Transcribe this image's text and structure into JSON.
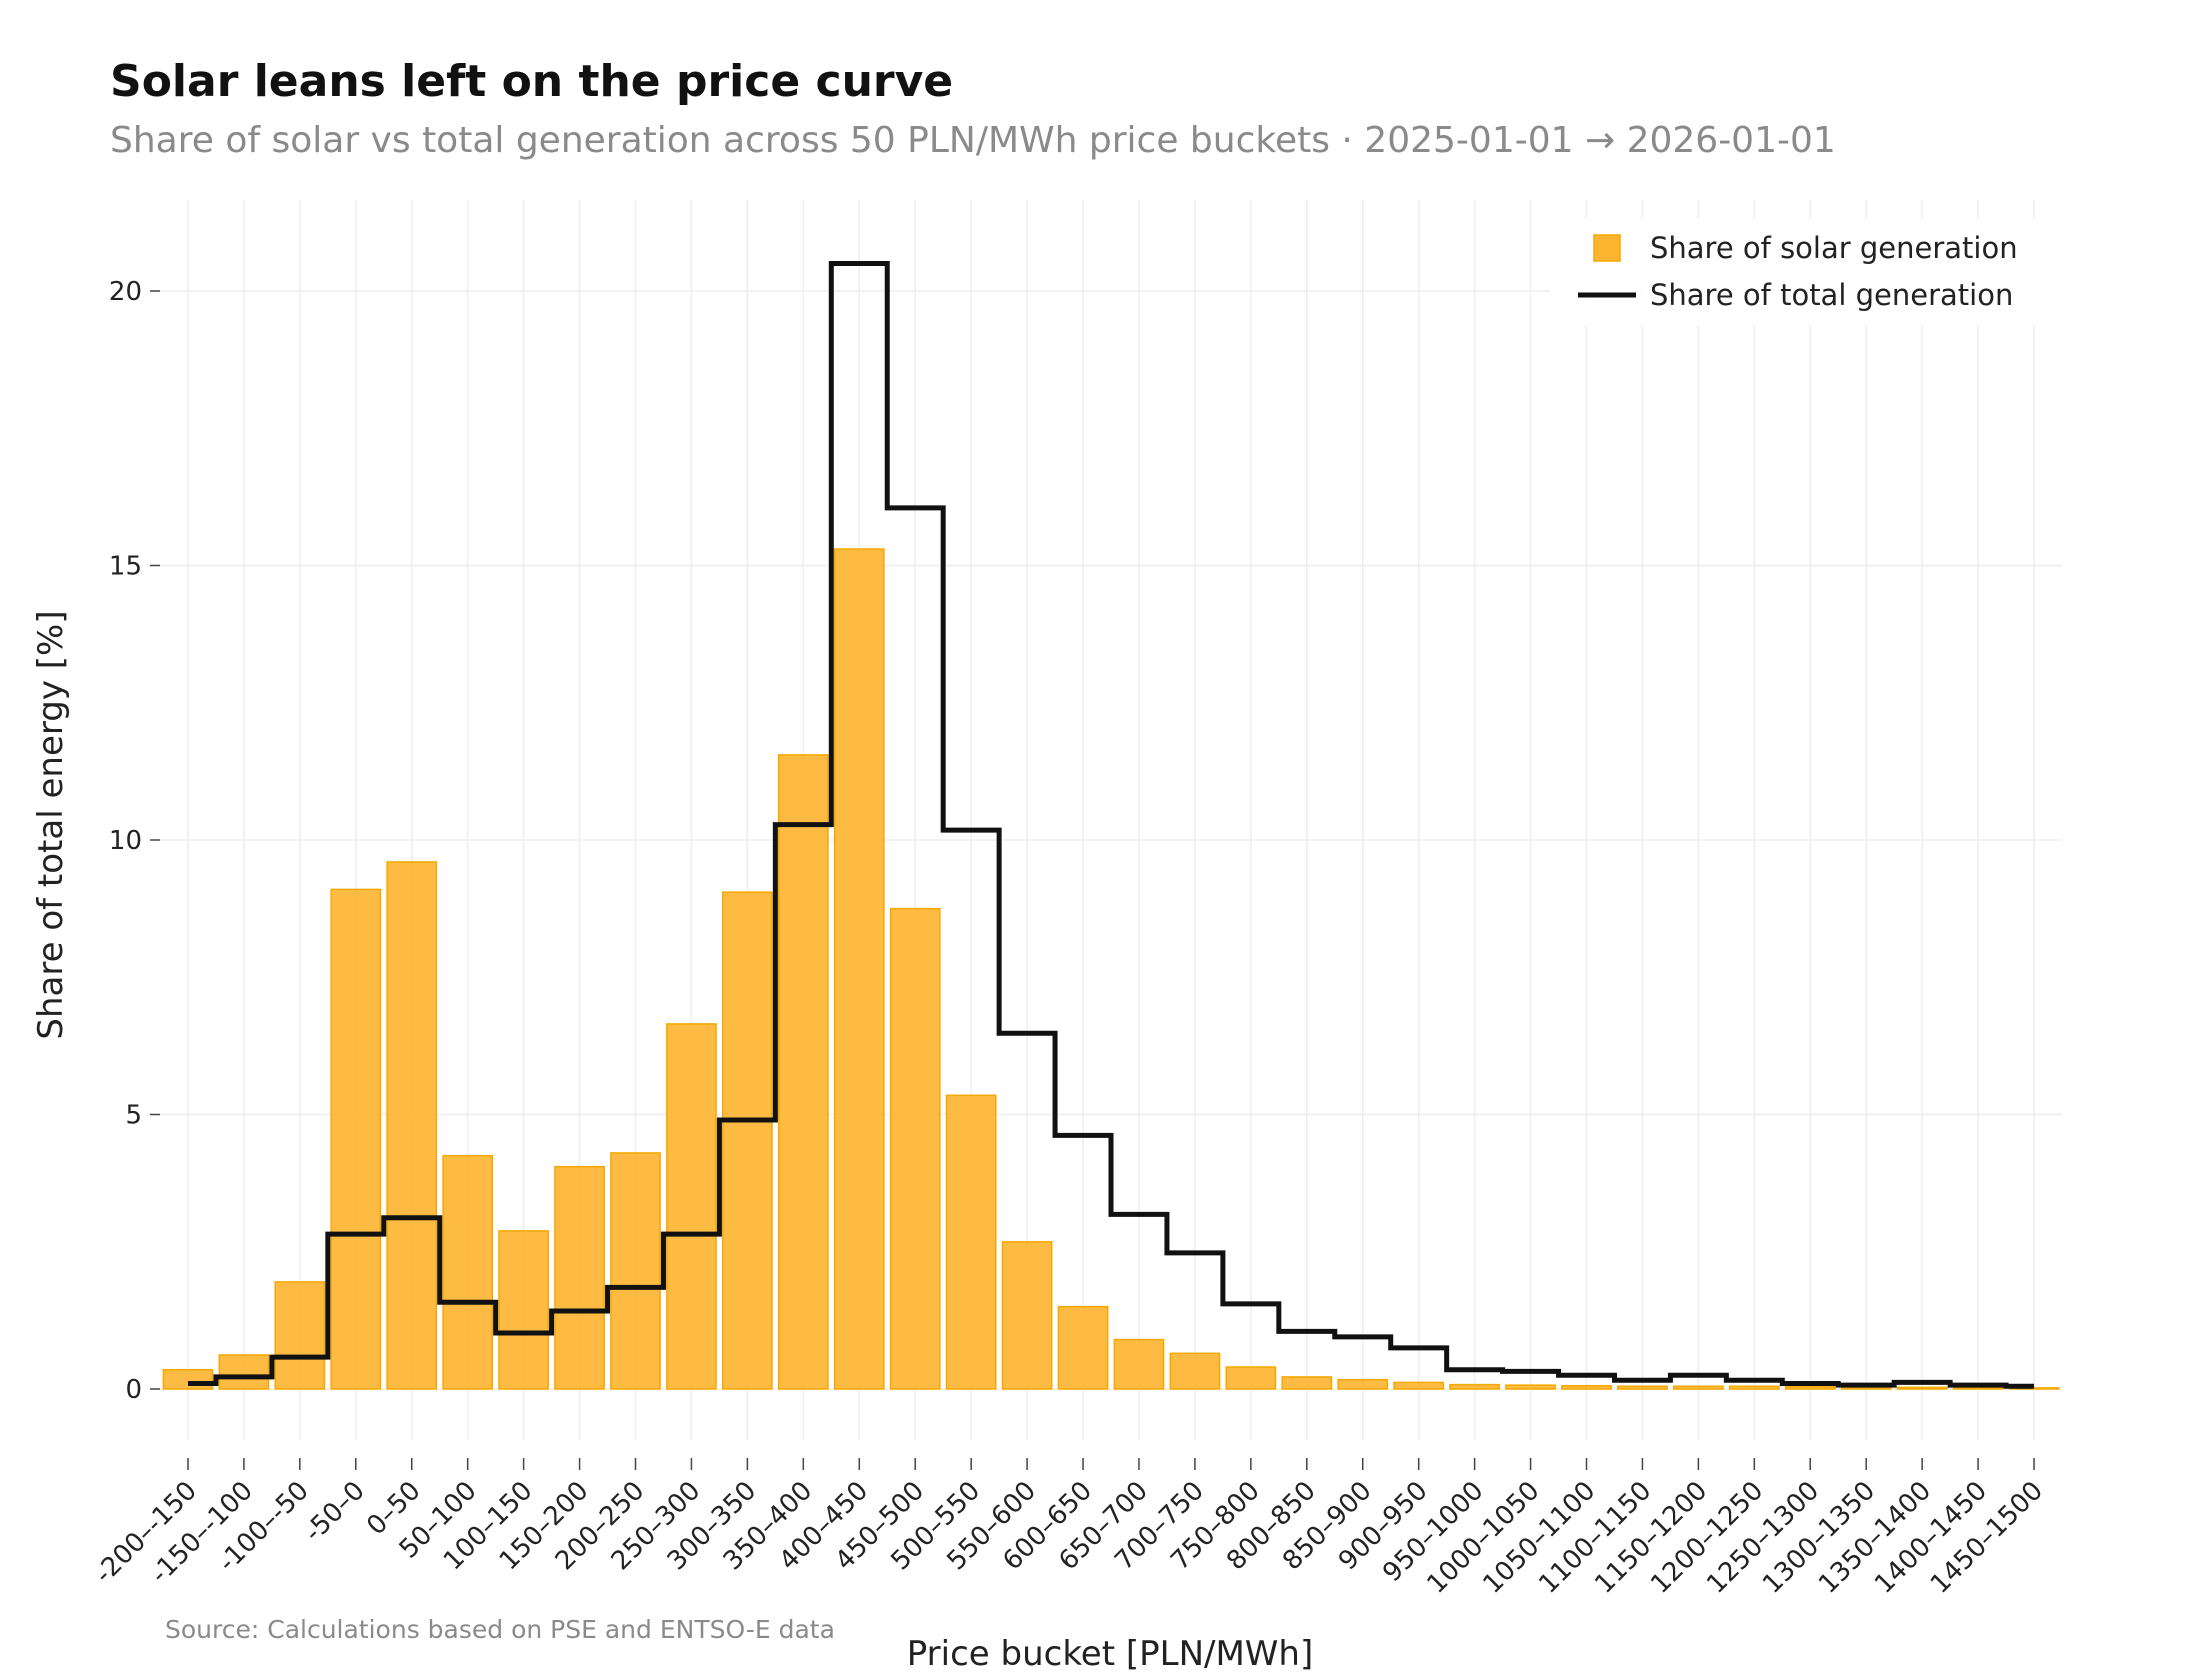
{
  "chart_data": {
    "type": "bar",
    "title": "Solar leans left on the price curve",
    "subtitle": "Share of solar vs total generation across 50 PLN/MWh price buckets · 2025-01-01 → 2026-01-01",
    "xlabel": "Price bucket [PLN/MWh]",
    "ylabel": "Share of total energy [%]",
    "ylim": [
      -1,
      20.5
    ],
    "yticks": [
      0,
      5,
      10,
      15,
      20
    ],
    "grid": true,
    "legend_position": "top-right",
    "source": "Source: Calculations based on PSE and ENTSO-E data",
    "categories": [
      "-200–-150",
      "-150–-100",
      "-100–-50",
      "-50–0",
      "0–50",
      "50–100",
      "100–150",
      "150–200",
      "200–250",
      "250–300",
      "300–350",
      "350–400",
      "400–450",
      "450–500",
      "500–550",
      "550–600",
      "600–650",
      "650–700",
      "700–750",
      "750–800",
      "800–850",
      "850–900",
      "900–950",
      "950–1000",
      "1000–1050",
      "1050–1100",
      "1100–1150",
      "1150–1200",
      "1200–1250",
      "1250–1300",
      "1300–1350",
      "1350–1400",
      "1400–1450",
      "1450–1500"
    ],
    "series": [
      {
        "name": "Share of solar generation",
        "kind": "bar",
        "color": "#FDB42F",
        "values": [
          0.35,
          0.62,
          1.95,
          9.1,
          9.6,
          4.25,
          2.88,
          4.05,
          4.3,
          6.65,
          9.05,
          11.55,
          15.3,
          8.75,
          5.35,
          2.68,
          1.5,
          0.9,
          0.65,
          0.4,
          0.22,
          0.17,
          0.12,
          0.08,
          0.07,
          0.06,
          0.05,
          0.05,
          0.05,
          0.04,
          0.04,
          0.03,
          0.03,
          0.02
        ]
      },
      {
        "name": "Share of total generation",
        "kind": "step-line",
        "color": "#111111",
        "values": [
          0.1,
          0.22,
          0.58,
          2.82,
          3.12,
          1.58,
          1.02,
          1.42,
          1.85,
          2.82,
          4.9,
          10.28,
          20.5,
          16.05,
          10.18,
          6.48,
          4.62,
          3.18,
          2.48,
          1.55,
          1.05,
          0.95,
          0.75,
          0.35,
          0.32,
          0.25,
          0.16,
          0.25,
          0.16,
          0.1,
          0.07,
          0.12,
          0.07,
          0.05
        ]
      }
    ]
  }
}
